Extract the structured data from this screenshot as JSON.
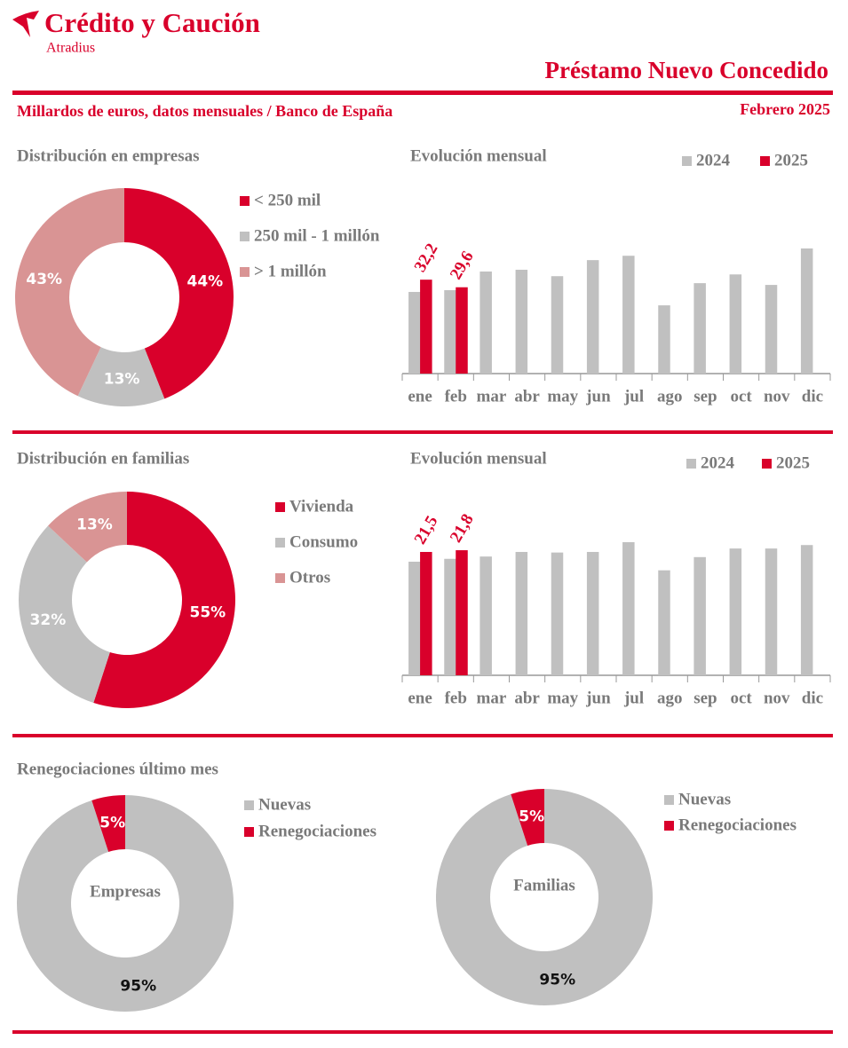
{
  "header": {
    "brand": "Crédito y Caución",
    "sub": "Atradius",
    "title": "Préstamo Nuevo Concedido",
    "subtitle": "Millardos de euros, datos mensuales / Banco de España",
    "date": "Febrero 2025",
    "section": "Renegociaciones último mes"
  },
  "chart_data": [
    {
      "type": "donut",
      "title": "Distribución en empresas",
      "categories": [
        "< 250 mil",
        "250 mil - 1 millón",
        "> 1 millón"
      ],
      "values": [
        44,
        13,
        43
      ],
      "value_labels": [
        "44%",
        "13%",
        "43%"
      ],
      "colors": [
        "#d9002b",
        "#c0c0c0",
        "#d99494"
      ]
    },
    {
      "type": "bar",
      "title": "Evolución mensual",
      "categories": [
        "ene",
        "feb",
        "mar",
        "abr",
        "may",
        "jun",
        "jul",
        "ago",
        "sep",
        "oct",
        "nov",
        "dic"
      ],
      "series": [
        {
          "name": "2024",
          "color": "#c0c0c0",
          "values": [
            28.0,
            28.6,
            35.0,
            35.6,
            33.4,
            38.9,
            40.4,
            23.4,
            31.0,
            34.0,
            30.4,
            42.9
          ]
        },
        {
          "name": "2025",
          "color": "#d9002b",
          "values": [
            32.2,
            29.6,
            null,
            null,
            null,
            null,
            null,
            null,
            null,
            null,
            null,
            null
          ],
          "value_labels": [
            "32,2",
            "29,6",
            null,
            null,
            null,
            null,
            null,
            null,
            null,
            null,
            null,
            null
          ]
        }
      ]
    },
    {
      "type": "donut",
      "title": "Distribución en familias",
      "categories": [
        "Vivienda",
        "Consumo",
        "Otros"
      ],
      "values": [
        55,
        32,
        13
      ],
      "value_labels": [
        "55%",
        "32%",
        "13%"
      ],
      "colors": [
        "#d9002b",
        "#c0c0c0",
        "#d99494"
      ]
    },
    {
      "type": "bar",
      "title": "Evolución mensual",
      "categories": [
        "ene",
        "feb",
        "mar",
        "abr",
        "may",
        "jun",
        "jul",
        "ago",
        "sep",
        "oct",
        "nov",
        "dic"
      ],
      "series": [
        {
          "name": "2024",
          "color": "#c0c0c0",
          "values": [
            19.8,
            20.3,
            20.7,
            21.5,
            21.4,
            21.5,
            23.2,
            18.3,
            20.6,
            22.1,
            22.1,
            22.7
          ]
        },
        {
          "name": "2025",
          "color": "#d9002b",
          "values": [
            21.5,
            21.8,
            null,
            null,
            null,
            null,
            null,
            null,
            null,
            null,
            null,
            null
          ],
          "value_labels": [
            "21,5",
            "21,8",
            null,
            null,
            null,
            null,
            null,
            null,
            null,
            null,
            null,
            null
          ]
        }
      ]
    },
    {
      "type": "donut",
      "center_label": "Empresas",
      "categories": [
        "Nuevas",
        "Renegociaciones"
      ],
      "values": [
        95,
        5
      ],
      "value_labels": [
        "95%",
        "5%"
      ],
      "colors": [
        "#c0c0c0",
        "#d9002b"
      ]
    },
    {
      "type": "donut",
      "center_label": "Familias",
      "categories": [
        "Nuevas",
        "Renegociaciones"
      ],
      "values": [
        95,
        5
      ],
      "value_labels": [
        "95%",
        "5%"
      ],
      "colors": [
        "#c0c0c0",
        "#d9002b"
      ]
    }
  ]
}
